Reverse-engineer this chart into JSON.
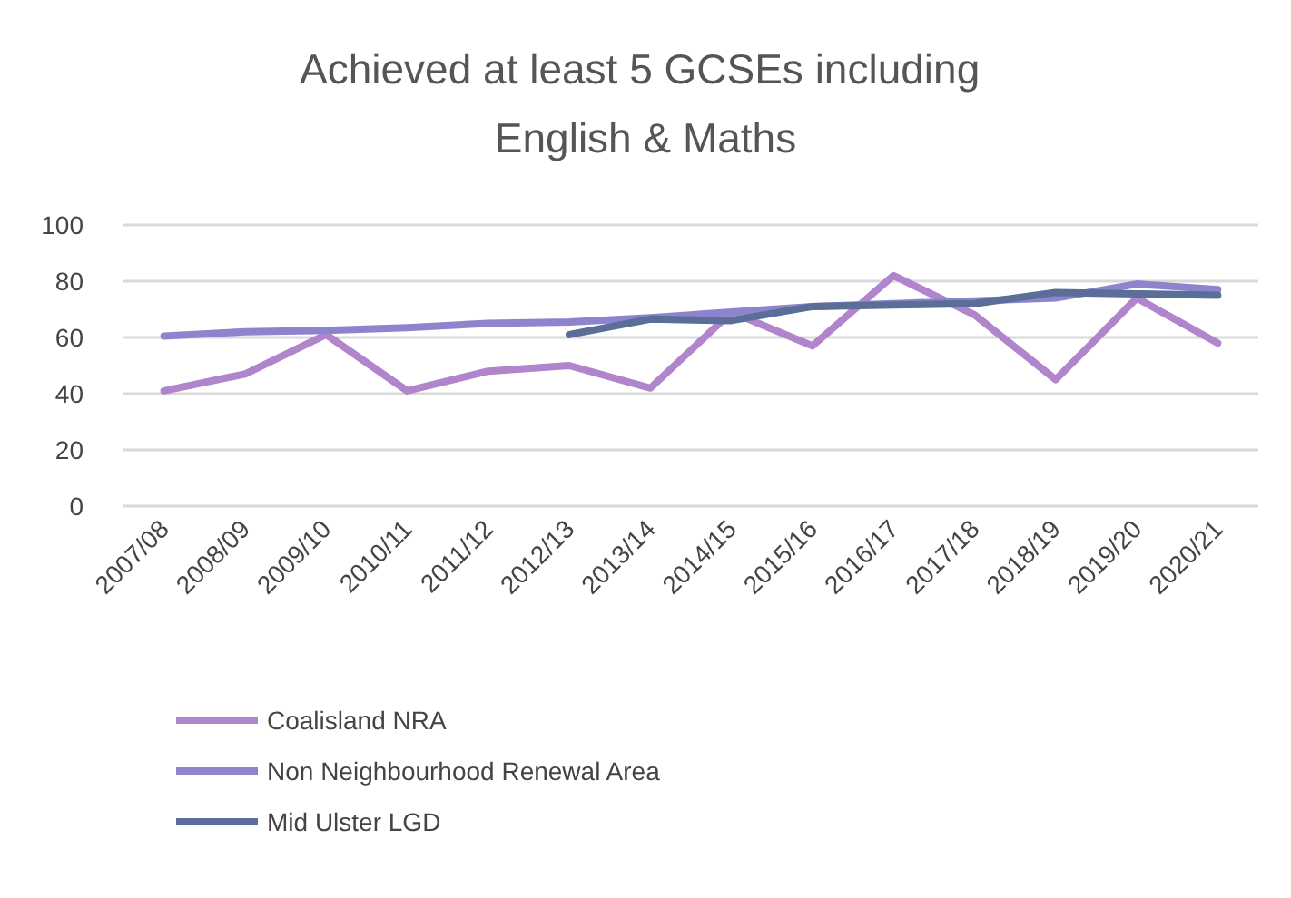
{
  "chart_data": {
    "type": "line",
    "title": "Achieved at least 5 GCSEs including English & Maths",
    "categories": [
      "2007/08",
      "2008/09",
      "2009/10",
      "2010/11",
      "2011/12",
      "2012/13",
      "2013/14",
      "2014/15",
      "2015/16",
      "2016/17",
      "2017/18",
      "2018/19",
      "2019/20",
      "2020/21"
    ],
    "series": [
      {
        "name": "Coalisland NRA",
        "color": "#b085cc",
        "values": [
          41,
          47,
          61,
          41,
          48,
          50,
          42,
          69,
          57,
          82,
          68,
          45,
          74,
          58
        ]
      },
      {
        "name": "Non Neighbourhood Renewal Area",
        "color": "#8c84cc",
        "values": [
          60.5,
          62,
          62.5,
          63.5,
          65,
          65.5,
          67,
          69,
          71,
          72,
          73,
          74,
          79,
          77
        ]
      },
      {
        "name": "Mid Ulster LGD",
        "color": "#5a6e98",
        "values": [
          null,
          null,
          null,
          null,
          null,
          61,
          66.5,
          66,
          71,
          71.5,
          72,
          76,
          75.5,
          75
        ]
      }
    ],
    "ylim": [
      0,
      100
    ],
    "yticks": [
      0,
      20,
      40,
      60,
      80,
      100
    ],
    "grid": "y",
    "legend": "bottom left",
    "marker": "none",
    "line_style": "solid"
  }
}
